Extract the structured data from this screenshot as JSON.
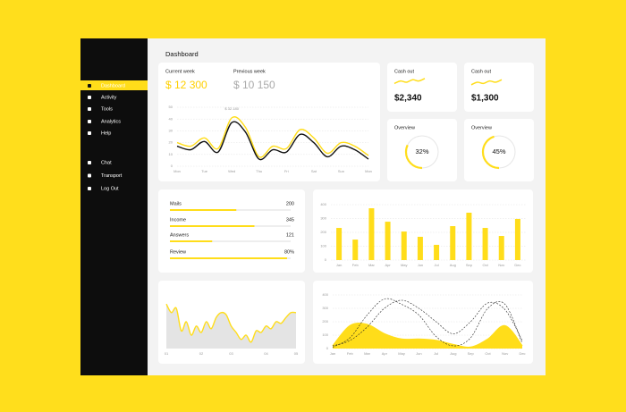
{
  "sidebar": {
    "items": [
      "Dashboard",
      "Activity",
      "Tools",
      "Analytics",
      "Help"
    ],
    "bottom_items": [
      "Chat",
      "Transport",
      "Log Out"
    ]
  },
  "header": {
    "title": "Dashboard"
  },
  "week_summary": {
    "current_label": "Current week",
    "current_value": "$ 12 300",
    "previous_label": "Previous week",
    "previous_value": "$ 10 150"
  },
  "cash_out": [
    {
      "label": "Cash out",
      "value": "$2,340",
      "trend": [
        4,
        6,
        5,
        7,
        6,
        8
      ],
      "trend_range": [
        0,
        10
      ]
    },
    {
      "label": "Cash out",
      "value": "$1,300",
      "trend": [
        3,
        5,
        4,
        6,
        5,
        7
      ],
      "trend_range": [
        0,
        10
      ]
    }
  ],
  "overview": [
    {
      "label": "Overview",
      "value": 32,
      "value_label": "32%"
    },
    {
      "label": "Overview",
      "value": 45,
      "value_label": "45%"
    }
  ],
  "stats": {
    "rows": [
      {
        "name": "Mails",
        "value": "200",
        "progress": 55
      },
      {
        "name": "Income",
        "value": "345",
        "progress": 70
      },
      {
        "name": "Answers",
        "value": "121",
        "progress": 35
      },
      {
        "name": "Review",
        "value": "80%",
        "progress": 97
      }
    ]
  },
  "chart_data": [
    {
      "type": "line",
      "annotation": "$ 32.180",
      "categories": [
        "Mon",
        null,
        "Tue",
        null,
        "Wed",
        null,
        "Thu",
        null,
        "Fri",
        null,
        "Sat",
        null,
        "Sun",
        null,
        "Mon"
      ],
      "series": [
        {
          "name": "Current week",
          "color": "#ffdd1a",
          "values": [
            20,
            17,
            24,
            15,
            41,
            33,
            8,
            17,
            15,
            31,
            24,
            11,
            20,
            17,
            9
          ]
        },
        {
          "name": "Previous week",
          "color": "#111111",
          "values": [
            17,
            14,
            21,
            12,
            37,
            29,
            6,
            14,
            12,
            27,
            20,
            8,
            17,
            14,
            6
          ]
        }
      ],
      "ylim": [
        0,
        50
      ],
      "yticks": [
        0,
        10,
        20,
        30,
        40,
        50
      ],
      "grid": true
    },
    {
      "type": "bar",
      "color": "#ffdd1a",
      "categories": [
        "Jan",
        "Feb",
        "Mar",
        "Apr",
        "May",
        "Jun",
        "Jul",
        "Aug",
        "Sep",
        "Oct",
        "Nov",
        "Dec"
      ],
      "values": [
        232,
        148,
        374,
        277,
        206,
        168,
        110,
        245,
        342,
        232,
        174,
        297
      ],
      "ylim": [
        0,
        400
      ],
      "yticks": [
        0,
        100,
        200,
        300,
        400
      ],
      "grid": true
    },
    {
      "type": "area",
      "categories": [
        "01",
        null,
        null,
        null,
        null,
        null,
        null,
        "02",
        null,
        null,
        null,
        null,
        null,
        "03",
        null,
        null,
        null,
        null,
        null,
        null,
        "04",
        null,
        null,
        null,
        null,
        null,
        "05"
      ],
      "series": [
        {
          "color": "#ffdd1a",
          "fill": "#e4e4e4",
          "values": [
            83,
            67,
            75,
            33,
            50,
            25,
            42,
            30,
            50,
            37,
            58,
            67,
            63,
            42,
            30,
            17,
            25,
            12,
            33,
            30,
            42,
            37,
            50,
            47,
            58,
            67,
            67
          ]
        }
      ],
      "ylim": [
        0,
        100
      ],
      "grid": true
    },
    {
      "type": "area",
      "categories": [
        "Jan",
        "Feb",
        "Mar",
        "Apr",
        "May",
        "Jun",
        "Jul",
        "Aug",
        "Sep",
        "Oct",
        "Nov",
        "Dec"
      ],
      "series": [
        {
          "color": "#ffdd1a",
          "fill": "#ffdd1a",
          "values": [
            20,
            170,
            180,
            110,
            70,
            70,
            60,
            30,
            10,
            70,
            170,
            20
          ]
        },
        {
          "color": "#222222",
          "dashed": true,
          "values": [
            10,
            80,
            250,
            370,
            330,
            250,
            90,
            20,
            80,
            300,
            330,
            40
          ]
        },
        {
          "color": "#222222",
          "dashed": true,
          "values": [
            20,
            60,
            160,
            300,
            360,
            300,
            200,
            110,
            200,
            340,
            290,
            60
          ]
        }
      ],
      "ylim": [
        0,
        400
      ],
      "yticks": [
        0,
        100,
        200,
        300,
        400
      ],
      "grid": true
    }
  ]
}
